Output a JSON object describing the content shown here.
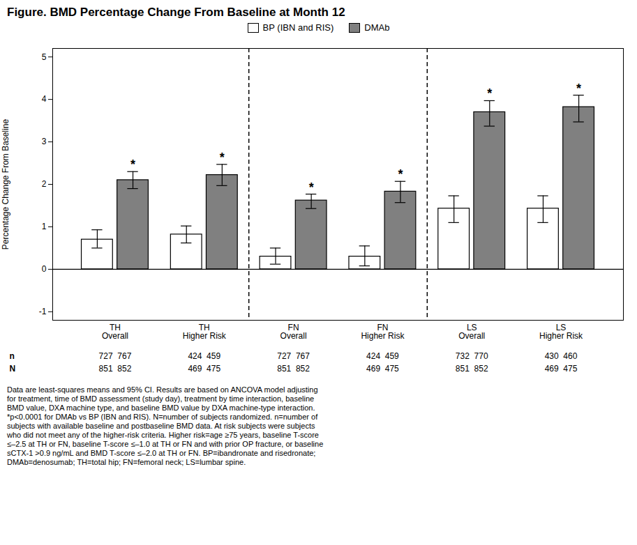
{
  "chart_data": {
    "type": "bar",
    "title": "Figure. BMD Percentage Change From Baseline at Month 12",
    "ylabel": "Percentage Change From Baseline",
    "categories": [
      "TH\nOverall",
      "TH\nHigher Risk",
      "FN\nOverall",
      "FN\nHigher Risk",
      "LS\nOverall",
      "LS\nHigher Risk"
    ],
    "series": [
      {
        "name": "BP (IBN and RIS)",
        "color": "#ffffff",
        "edge_color": "#000000",
        "values": [
          0.7,
          0.82,
          0.3,
          0.3,
          1.43,
          1.43
        ],
        "ci_lower": [
          0.5,
          0.62,
          0.12,
          0.08,
          1.1,
          1.1
        ],
        "ci_upper": [
          0.93,
          1.02,
          0.5,
          0.55,
          1.73,
          1.73
        ]
      },
      {
        "name": "DMAb",
        "color": "#808080",
        "edge_color": "#000000",
        "values": [
          2.1,
          2.22,
          1.62,
          1.83,
          3.7,
          3.82
        ],
        "ci_lower": [
          1.9,
          1.97,
          1.43,
          1.57,
          3.37,
          3.47
        ],
        "ci_upper": [
          2.3,
          2.47,
          1.77,
          2.07,
          3.97,
          4.1
        ],
        "annotation": "*",
        "annotated": [
          true,
          true,
          true,
          true,
          true,
          true
        ]
      }
    ],
    "ylim": [
      -1.2,
      5.2
    ],
    "yticks": [
      -1,
      0,
      1,
      2,
      3,
      4,
      5
    ],
    "grid": false,
    "legend": "top",
    "dividers": [
      1.5,
      3.5
    ],
    "table": [
      {
        "label": "n",
        "values": [
          "727  767",
          "424  459",
          "727  767",
          "424  459",
          "732  770",
          "430  460"
        ]
      },
      {
        "label": "N",
        "values": [
          "851  852",
          "469  475",
          "851  852",
          "469  475",
          "851  852",
          "469  475"
        ]
      }
    ],
    "footnote": "Data are least-squares means and 95% CI. Results are based on ANCOVA model adjusting\nfor treatment, time of BMD assessment (study day), treatment by time interaction, baseline\nBMD value, DXA machine type, and baseline BMD value by DXA machine-type interaction.\n*p<0.0001 for DMAb vs BP (IBN and RIS). N=number of subjects randomized. n=number of\nsubjects with available baseline and postbaseline BMD data. At risk subjects were subjects\nwho did not meet any of the higher-risk criteria. Higher risk=age ≥75 years, baseline T-score\n≤–2.5 at TH or FN, baseline T-score ≤–1.0 at TH or FN and with prior OP fracture, or baseline\nsCTX-1 >0.9 ng/mL and BMD T-score ≤–2.0 at TH or FN. BP=ibandronate and risedronate;\nDMAb=denosumab; TH=total hip; FN=femoral neck; LS=lumbar spine."
  }
}
